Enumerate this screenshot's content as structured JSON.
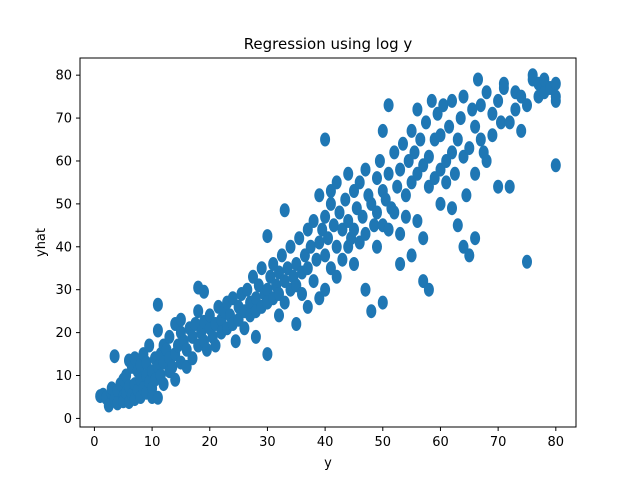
{
  "chart_data": {
    "type": "scatter",
    "title": "Regression using log y",
    "xlabel": "y",
    "ylabel": "yhat",
    "xlim": [
      -2.5,
      83.5
    ],
    "ylim": [
      -2,
      84
    ],
    "xticks": [
      0,
      10,
      20,
      30,
      40,
      50,
      60,
      70,
      80
    ],
    "yticks": [
      0,
      10,
      20,
      30,
      40,
      50,
      60,
      70,
      80
    ],
    "grid": false,
    "marker_color": "#1f77b4",
    "points": [
      [
        1,
        5.2
      ],
      [
        1.5,
        5.5
      ],
      [
        2,
        4.8
      ],
      [
        2.5,
        3
      ],
      [
        3,
        5.8
      ],
      [
        3,
        7
      ],
      [
        3.5,
        4.5
      ],
      [
        3.5,
        14.5
      ],
      [
        4,
        6.5
      ],
      [
        4,
        3.5
      ],
      [
        4.5,
        8
      ],
      [
        5,
        5
      ],
      [
        5,
        9
      ],
      [
        5,
        4
      ],
      [
        5.5,
        10
      ],
      [
        5.5,
        6
      ],
      [
        6,
        7.5
      ],
      [
        6,
        13.5
      ],
      [
        6,
        3.8
      ],
      [
        6.5,
        5.5
      ],
      [
        6.5,
        12
      ],
      [
        7,
        8
      ],
      [
        7,
        4.5
      ],
      [
        7,
        14
      ],
      [
        7.5,
        11
      ],
      [
        7.5,
        6.5
      ],
      [
        8,
        9
      ],
      [
        8,
        5
      ],
      [
        8,
        12.5
      ],
      [
        8.5,
        7
      ],
      [
        8.5,
        15
      ],
      [
        9,
        10
      ],
      [
        9,
        6
      ],
      [
        9,
        13
      ],
      [
        9.5,
        8.5
      ],
      [
        9.5,
        17
      ],
      [
        10,
        11
      ],
      [
        10,
        7
      ],
      [
        10,
        5
      ],
      [
        10.5,
        14
      ],
      [
        10.5,
        9
      ],
      [
        11,
        12
      ],
      [
        11,
        20.5
      ],
      [
        11,
        4.8
      ],
      [
        11,
        26.5
      ],
      [
        11.5,
        15
      ],
      [
        11.5,
        10
      ],
      [
        12,
        13
      ],
      [
        12,
        17
      ],
      [
        12,
        8
      ],
      [
        12.5,
        16
      ],
      [
        13,
        14
      ],
      [
        13,
        11
      ],
      [
        13,
        19
      ],
      [
        13.5,
        12
      ],
      [
        14,
        22
      ],
      [
        14,
        15
      ],
      [
        14,
        9
      ],
      [
        14.5,
        17
      ],
      [
        15,
        13
      ],
      [
        15,
        20
      ],
      [
        15,
        23
      ],
      [
        15.5,
        18
      ],
      [
        16,
        16
      ],
      [
        16,
        12
      ],
      [
        16.5,
        21
      ],
      [
        17,
        19
      ],
      [
        17,
        14
      ],
      [
        17.5,
        22
      ],
      [
        18,
        17
      ],
      [
        18,
        30.5
      ],
      [
        18,
        25
      ],
      [
        18.5,
        20
      ],
      [
        19,
        18
      ],
      [
        19,
        22.5
      ],
      [
        19,
        29.5
      ],
      [
        19.5,
        16
      ],
      [
        20,
        21
      ],
      [
        20,
        24
      ],
      [
        20.5,
        19
      ],
      [
        21,
        22
      ],
      [
        21,
        17
      ],
      [
        21.5,
        26
      ],
      [
        22,
        23
      ],
      [
        22,
        20
      ],
      [
        22.5,
        25
      ],
      [
        23,
        21
      ],
      [
        23,
        27
      ],
      [
        23.5,
        24
      ],
      [
        24,
        22
      ],
      [
        24,
        28
      ],
      [
        24.5,
        18
      ],
      [
        25,
        26
      ],
      [
        25,
        23
      ],
      [
        25.5,
        29
      ],
      [
        26,
        25
      ],
      [
        26,
        21
      ],
      [
        26.5,
        30
      ],
      [
        27,
        27
      ],
      [
        27,
        24
      ],
      [
        27.5,
        33
      ],
      [
        28,
        28
      ],
      [
        28,
        25
      ],
      [
        28,
        19
      ],
      [
        28.5,
        31
      ],
      [
        29,
        26
      ],
      [
        29,
        35
      ],
      [
        29.5,
        29
      ],
      [
        30,
        30
      ],
      [
        30,
        27
      ],
      [
        30,
        15
      ],
      [
        30,
        42.5
      ],
      [
        30.5,
        33
      ],
      [
        31,
        28
      ],
      [
        31,
        36
      ],
      [
        31.5,
        31
      ],
      [
        32,
        34
      ],
      [
        32,
        29
      ],
      [
        32,
        24
      ],
      [
        32.5,
        38
      ],
      [
        33,
        32
      ],
      [
        33,
        48.5
      ],
      [
        33,
        27
      ],
      [
        33.5,
        35
      ],
      [
        34,
        30
      ],
      [
        34,
        40
      ],
      [
        34.5,
        33
      ],
      [
        35,
        36
      ],
      [
        35,
        31
      ],
      [
        35,
        22
      ],
      [
        35.5,
        42
      ],
      [
        36,
        34
      ],
      [
        36,
        29
      ],
      [
        36.5,
        38
      ],
      [
        37,
        44
      ],
      [
        37,
        35
      ],
      [
        37,
        26
      ],
      [
        37.5,
        40
      ],
      [
        38,
        32
      ],
      [
        38,
        46
      ],
      [
        38.5,
        37
      ],
      [
        39,
        41
      ],
      [
        39,
        28
      ],
      [
        39,
        52
      ],
      [
        39.5,
        44
      ],
      [
        40,
        38
      ],
      [
        40,
        47
      ],
      [
        40,
        30
      ],
      [
        40,
        65
      ],
      [
        40.5,
        42
      ],
      [
        41,
        50
      ],
      [
        41,
        35
      ],
      [
        41,
        53
      ],
      [
        41.5,
        45
      ],
      [
        42,
        40
      ],
      [
        42,
        55
      ],
      [
        42,
        33
      ],
      [
        42.5,
        48
      ],
      [
        43,
        44
      ],
      [
        43,
        37
      ],
      [
        43.5,
        51
      ],
      [
        44,
        46
      ],
      [
        44,
        40
      ],
      [
        44,
        57
      ],
      [
        44.5,
        42
      ],
      [
        45,
        53
      ],
      [
        45,
        36
      ],
      [
        45,
        44
      ],
      [
        45.5,
        49
      ],
      [
        46,
        55
      ],
      [
        46,
        41
      ],
      [
        46.5,
        47
      ],
      [
        47,
        58
      ],
      [
        47,
        43
      ],
      [
        47,
        30
      ],
      [
        47.5,
        52
      ],
      [
        48,
        50
      ],
      [
        48,
        25
      ],
      [
        48.5,
        45
      ],
      [
        49,
        56
      ],
      [
        49,
        48
      ],
      [
        49,
        40
      ],
      [
        49.5,
        60
      ],
      [
        50,
        53
      ],
      [
        50,
        45
      ],
      [
        50,
        67
      ],
      [
        50,
        27
      ],
      [
        50.5,
        51
      ],
      [
        51,
        57
      ],
      [
        51,
        44
      ],
      [
        51,
        73
      ],
      [
        51.5,
        49
      ],
      [
        52,
        62
      ],
      [
        52,
        48
      ],
      [
        52.5,
        54
      ],
      [
        53,
        58
      ],
      [
        53,
        43
      ],
      [
        53,
        36
      ],
      [
        53.5,
        64
      ],
      [
        54,
        52
      ],
      [
        54,
        47
      ],
      [
        54.5,
        60
      ],
      [
        55,
        67
      ],
      [
        55,
        55
      ],
      [
        55,
        38
      ],
      [
        55.5,
        62
      ],
      [
        56,
        57
      ],
      [
        56,
        72
      ],
      [
        56,
        46
      ],
      [
        56.5,
        65
      ],
      [
        57,
        59
      ],
      [
        57,
        42
      ],
      [
        57,
        32
      ],
      [
        57.5,
        69
      ],
      [
        58,
        54
      ],
      [
        58,
        61
      ],
      [
        58,
        30
      ],
      [
        58.5,
        74
      ],
      [
        59,
        56
      ],
      [
        59,
        65
      ],
      [
        59.5,
        71
      ],
      [
        60,
        58
      ],
      [
        60,
        66
      ],
      [
        60,
        50
      ],
      [
        60.5,
        73
      ],
      [
        61,
        60
      ],
      [
        61,
        55
      ],
      [
        61.5,
        68
      ],
      [
        62,
        62
      ],
      [
        62,
        74
      ],
      [
        62,
        49
      ],
      [
        62.5,
        57
      ],
      [
        63,
        65
      ],
      [
        63,
        45
      ],
      [
        63.5,
        70
      ],
      [
        64,
        61
      ],
      [
        64,
        75
      ],
      [
        64,
        40
      ],
      [
        64.5,
        52
      ],
      [
        65,
        63
      ],
      [
        65,
        38
      ],
      [
        65.5,
        72
      ],
      [
        66,
        68
      ],
      [
        66,
        57
      ],
      [
        66,
        42
      ],
      [
        66.5,
        79
      ],
      [
        67,
        65
      ],
      [
        67,
        73
      ],
      [
        67.5,
        62
      ],
      [
        68,
        76
      ],
      [
        68,
        60
      ],
      [
        69,
        71
      ],
      [
        69,
        66
      ],
      [
        70,
        74
      ],
      [
        70,
        54
      ],
      [
        70.5,
        69
      ],
      [
        71,
        78
      ],
      [
        71,
        77
      ],
      [
        72,
        54
      ],
      [
        72,
        69
      ],
      [
        73,
        72
      ],
      [
        73,
        76
      ],
      [
        74,
        75
      ],
      [
        74,
        67
      ],
      [
        75,
        73
      ],
      [
        75,
        36.5
      ],
      [
        76,
        79
      ],
      [
        76,
        80
      ],
      [
        77,
        75
      ],
      [
        77,
        78
      ],
      [
        78,
        76
      ],
      [
        78,
        79
      ],
      [
        79,
        77
      ],
      [
        80,
        78
      ],
      [
        80,
        75
      ],
      [
        80,
        59
      ],
      [
        80,
        74
      ]
    ]
  }
}
